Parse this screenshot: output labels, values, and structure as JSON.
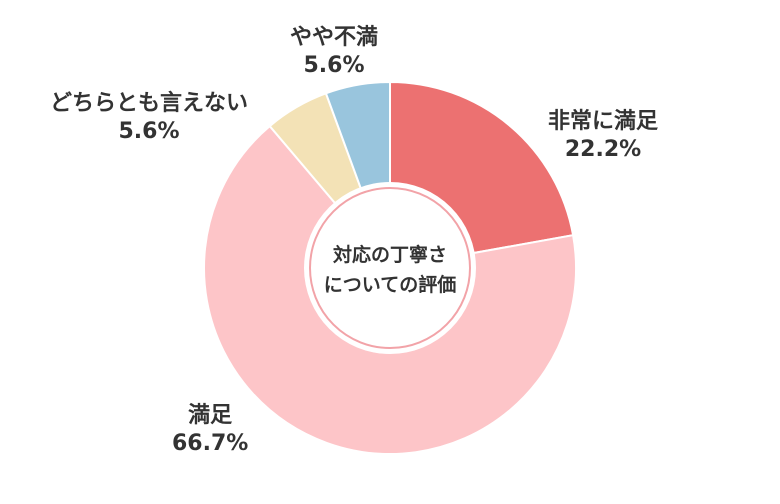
{
  "chart_data": {
    "type": "pie",
    "center_title": [
      "対応の丁寧さ",
      "についての評価"
    ],
    "slices": [
      {
        "label": "非常に満足",
        "value": 22.2,
        "value_label": "22.2%",
        "color": "#ec7171"
      },
      {
        "label": "満足",
        "value": 66.7,
        "value_label": "66.7%",
        "color": "#fdc5c8"
      },
      {
        "label": "どちらとも言えない",
        "value": 5.6,
        "value_label": "5.6%",
        "color": "#f3e2b6"
      },
      {
        "label": "やや不満",
        "value": 5.6,
        "value_label": "5.6%",
        "color": "#99c5dd"
      }
    ]
  }
}
